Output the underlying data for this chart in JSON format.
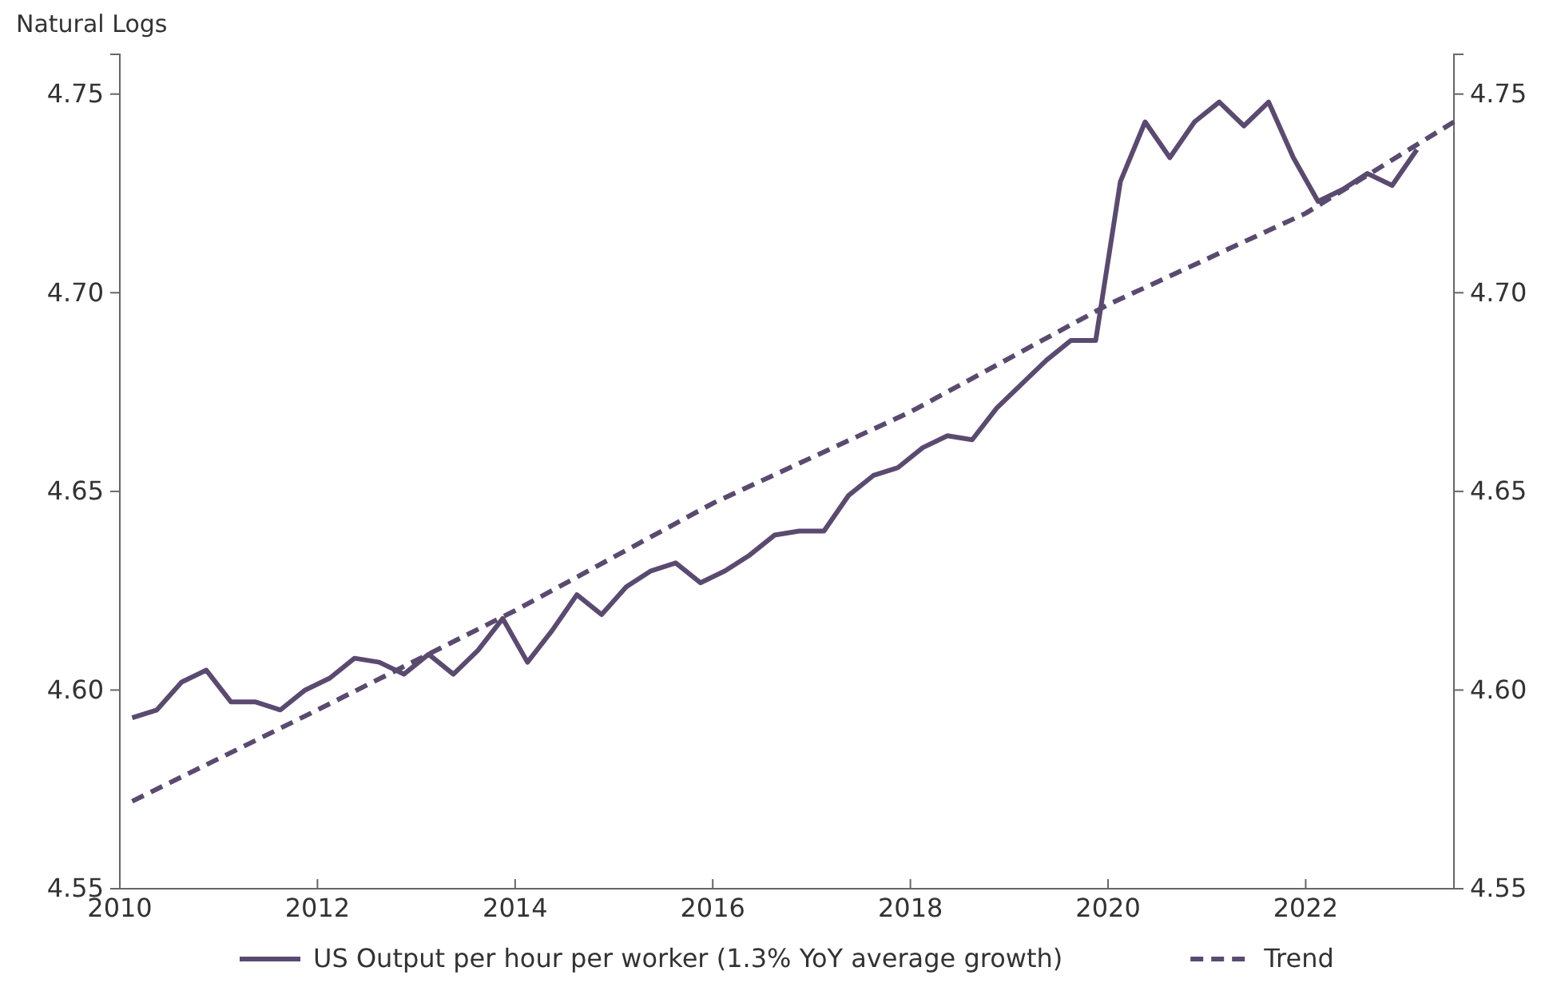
{
  "chart_data": {
    "type": "line",
    "ylabel": "Natural Logs",
    "xlim": [
      2010,
      2023.5
    ],
    "xticks": [
      2010,
      2012,
      2014,
      2016,
      2018,
      2020,
      2022
    ],
    "ylim": [
      4.55,
      4.76
    ],
    "yticks": [
      {
        "value": 4.55,
        "label": "4.55"
      },
      {
        "value": 4.6,
        "label": "4.60"
      },
      {
        "value": 4.65,
        "label": "4.65"
      },
      {
        "value": 4.7,
        "label": "4.70"
      },
      {
        "value": 4.75,
        "label": "4.75"
      }
    ],
    "y2lim": [
      4.55,
      4.76
    ],
    "y2ticks": [
      {
        "value": 4.55,
        "label": "4.55"
      },
      {
        "value": 4.6,
        "label": "4.60"
      },
      {
        "value": 4.65,
        "label": "4.65"
      },
      {
        "value": 4.7,
        "label": "4.70"
      },
      {
        "value": 4.75,
        "label": "4.75"
      }
    ],
    "legend": "bottom",
    "grid": false,
    "series": [
      {
        "name": "US Output per hour per worker (1.3% YoY average growth)",
        "color": "#5a4a70",
        "line_style": "solid",
        "x": [
          2010.125,
          2010.375,
          2010.625,
          2010.875,
          2011.125,
          2011.375,
          2011.625,
          2011.875,
          2012.125,
          2012.375,
          2012.625,
          2012.875,
          2013.125,
          2013.375,
          2013.625,
          2013.875,
          2014.125,
          2014.375,
          2014.625,
          2014.875,
          2015.125,
          2015.375,
          2015.625,
          2015.875,
          2016.125,
          2016.375,
          2016.625,
          2016.875,
          2017.125,
          2017.375,
          2017.625,
          2017.875,
          2018.125,
          2018.375,
          2018.625,
          2018.875,
          2019.125,
          2019.375,
          2019.625,
          2019.875,
          2020.125,
          2020.375,
          2020.625,
          2020.875,
          2021.125,
          2021.375,
          2021.625,
          2021.875,
          2022.125,
          2022.375,
          2022.625,
          2022.875,
          2023.125
        ],
        "values": [
          4.593,
          4.595,
          4.602,
          4.605,
          4.597,
          4.597,
          4.595,
          4.6,
          4.603,
          4.608,
          4.607,
          4.604,
          4.609,
          4.604,
          4.61,
          4.618,
          4.607,
          4.615,
          4.624,
          4.619,
          4.626,
          4.63,
          4.632,
          4.627,
          4.63,
          4.634,
          4.639,
          4.64,
          4.64,
          4.649,
          4.654,
          4.656,
          4.661,
          4.664,
          4.663,
          4.671,
          4.677,
          4.683,
          4.688,
          4.688,
          4.728,
          4.743,
          4.734,
          4.743,
          4.748,
          4.742,
          4.748,
          4.734,
          4.723,
          4.726,
          4.73,
          4.727,
          4.736
        ]
      },
      {
        "name": "Trend",
        "color": "#5a4a70",
        "line_style": "dashed",
        "x": [
          2010.125,
          2012,
          2014,
          2016,
          2018,
          2020,
          2022,
          2023.5
        ],
        "values": [
          4.572,
          4.595,
          4.62,
          4.647,
          4.67,
          4.697,
          4.72,
          4.743
        ]
      }
    ]
  }
}
